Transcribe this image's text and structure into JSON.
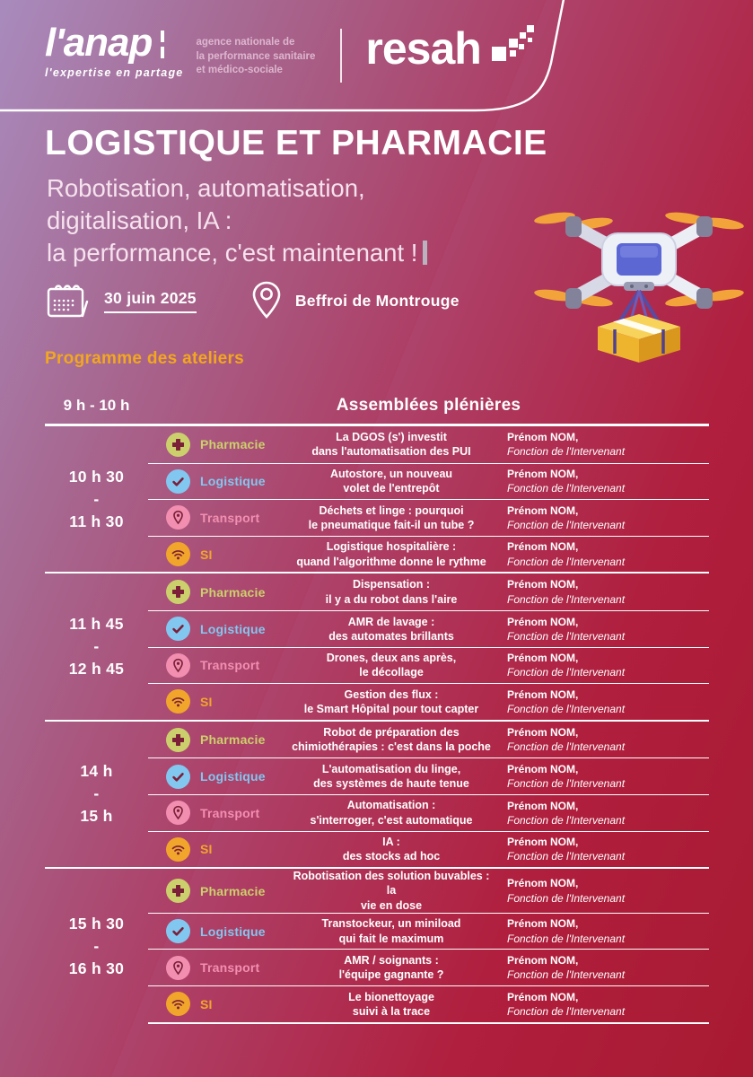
{
  "brand": {
    "anap_name": "l'anap",
    "anap_tagline": "l'expertise en partage",
    "anap_description_lines": [
      "agence nationale de",
      "la performance sanitaire",
      "et médico-sociale"
    ],
    "resah_name": "resah"
  },
  "hero": {
    "title": "LOGISTIQUE ET PHARMACIE",
    "subtitle_lines": [
      "Robotisation, automatisation,",
      "digitalisation, IA :",
      "la performance, c'est maintenant !"
    ],
    "date": "30 juin 2025",
    "location": "Beffroi de Montrouge"
  },
  "program": {
    "heading": "Programme des ateliers",
    "plenary_time": "9 h - 10 h",
    "plenary_title": "Assemblées plénières",
    "time_separator": "-",
    "speaker_name": "Prénom NOM,",
    "speaker_role": "Fonction de l'Intervenant",
    "categories": {
      "pharmacie": {
        "label": "Pharmacie",
        "color": "#ccd06c",
        "icon": "medical-cross-icon"
      },
      "logistique": {
        "label": "Logistique",
        "color": "#82c7f0",
        "icon": "checkmark-icon"
      },
      "transport": {
        "label": "Transport",
        "color": "#f28fb1",
        "icon": "map-pin-icon"
      },
      "si": {
        "label": "SI",
        "color": "#f2a52b",
        "icon": "wifi-icon"
      }
    },
    "groups": [
      {
        "time_start": "10 h 30",
        "time_end": "11 h 30",
        "sessions": [
          {
            "category": "pharmacie",
            "title_lines": [
              "La DGOS (s') investit",
              "dans l'automatisation des PUI"
            ]
          },
          {
            "category": "logistique",
            "title_lines": [
              "Autostore, un nouveau",
              "volet de l'entrepôt"
            ]
          },
          {
            "category": "transport",
            "title_lines": [
              "Déchets et linge : pourquoi",
              "le pneumatique fait-il un tube ?"
            ]
          },
          {
            "category": "si",
            "title_lines": [
              "Logistique hospitalière :",
              "quand l'algorithme donne le rythme"
            ]
          }
        ]
      },
      {
        "time_start": "11 h 45",
        "time_end": "12 h 45",
        "sessions": [
          {
            "category": "pharmacie",
            "title_lines": [
              "Dispensation :",
              "il y a du robot dans l'aire"
            ]
          },
          {
            "category": "logistique",
            "title_lines": [
              "AMR de lavage :",
              "des automates brillants"
            ]
          },
          {
            "category": "transport",
            "title_lines": [
              "Drones, deux ans après,",
              "le décollage"
            ]
          },
          {
            "category": "si",
            "title_lines": [
              "Gestion des flux :",
              "le Smart Hôpital pour tout capter"
            ]
          }
        ]
      },
      {
        "time_start": "14 h",
        "time_end": "15 h",
        "sessions": [
          {
            "category": "pharmacie",
            "title_lines": [
              "Robot de préparation des",
              "chimiothérapies : c'est dans la poche"
            ]
          },
          {
            "category": "logistique",
            "title_lines": [
              "L'automatisation du linge,",
              "des systèmes de haute tenue"
            ]
          },
          {
            "category": "transport",
            "title_lines": [
              "Automatisation :",
              "s'interroger, c'est automatique"
            ]
          },
          {
            "category": "si",
            "title_lines": [
              "IA :",
              "des stocks ad hoc"
            ]
          }
        ]
      },
      {
        "time_start": "15 h 30",
        "time_end": "16 h 30",
        "sessions": [
          {
            "category": "pharmacie",
            "title_lines": [
              "Robotisation des solution buvables : la",
              "vie en dose"
            ]
          },
          {
            "category": "logistique",
            "title_lines": [
              "Transtockeur, un miniload",
              "qui fait le maximum"
            ]
          },
          {
            "category": "transport",
            "title_lines": [
              "AMR / soignants :",
              "l'équipe gagnante ?"
            ]
          },
          {
            "category": "si",
            "title_lines": [
              "Le bionettoyage",
              "suivi à la trace"
            ]
          }
        ]
      }
    ]
  },
  "colors": {
    "accent_gold": "#f2a71e",
    "glyph_maroon": "#7b2038",
    "gradient_purple": "#a88bbd",
    "gradient_crimson": "#a81a31"
  }
}
